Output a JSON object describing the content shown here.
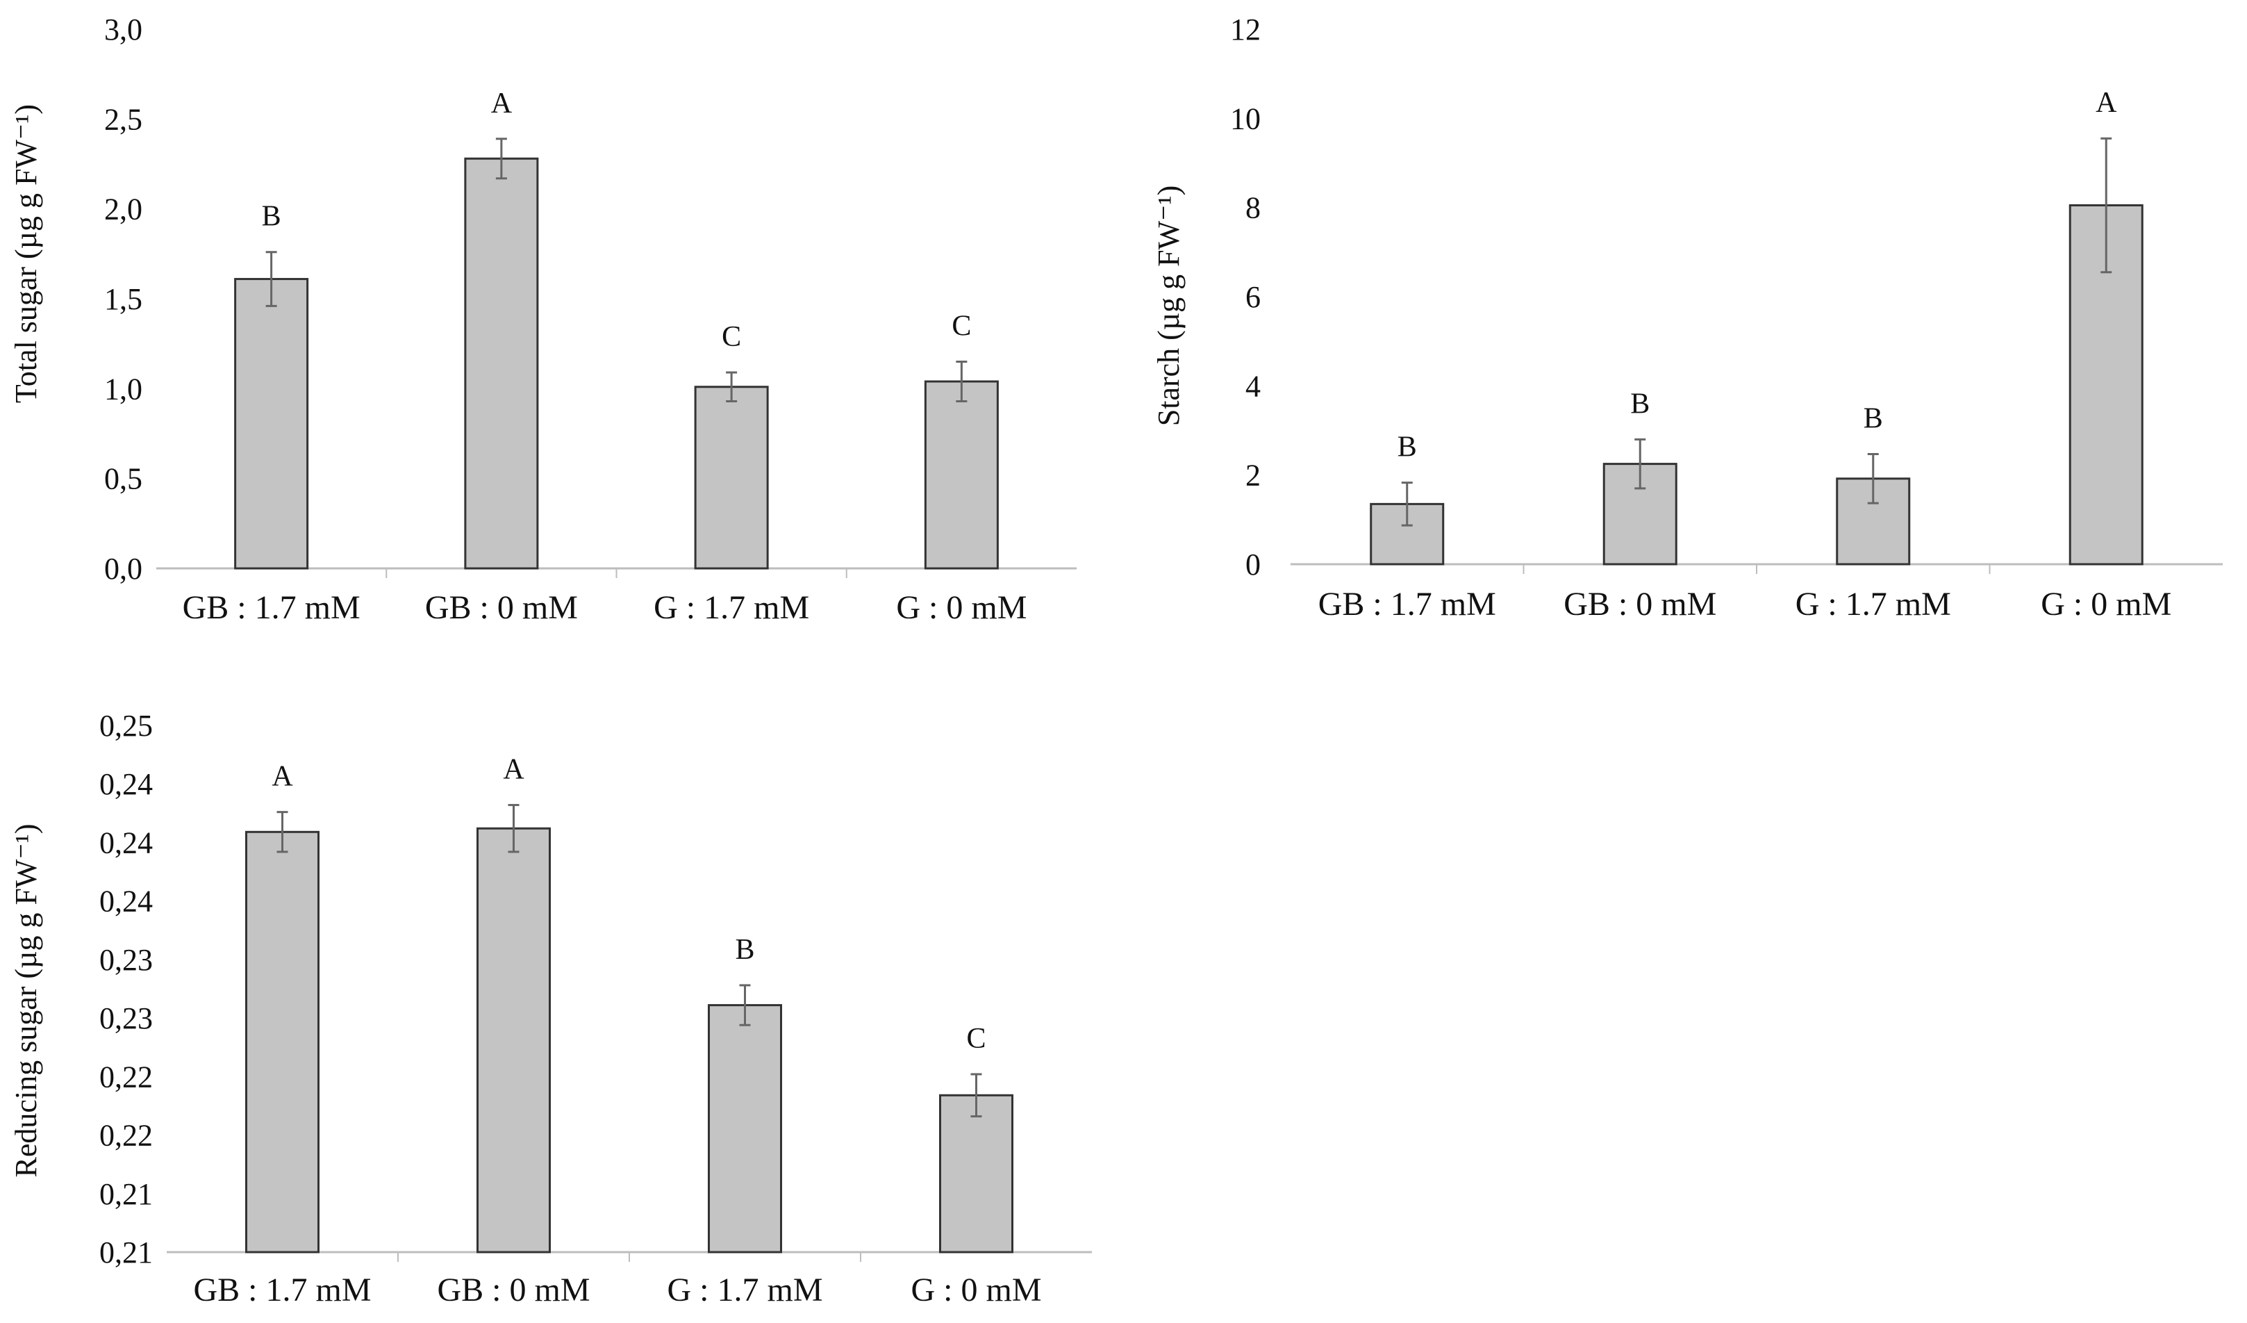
{
  "chart_data": [
    {
      "type": "bar",
      "id": "total",
      "ylabel": "Total sugar (µg g FW⁻¹)",
      "categories": [
        "GB : 1.7 mM",
        "GB : 0 mM",
        "G : 1.7 mM",
        "G : 0 mM"
      ],
      "values": [
        1.61,
        2.28,
        1.01,
        1.04
      ],
      "errors": [
        0.15,
        0.11,
        0.08,
        0.11
      ],
      "letters": [
        "B",
        "A",
        "C",
        "C"
      ],
      "ylim": [
        0,
        3.0
      ],
      "yticks": [
        0,
        0.5,
        1.0,
        1.5,
        2.0,
        2.5,
        3.0
      ],
      "ytick_labels": [
        "0,0",
        "0,5",
        "1,0",
        "1,5",
        "2,0",
        "2,5",
        "3,0"
      ],
      "grid": false
    },
    {
      "type": "bar",
      "id": "starch",
      "ylabel": "Starch (µg g FW⁻¹)",
      "categories": [
        "GB : 1.7 mM",
        "GB : 0 mM",
        "G : 1.7 mM",
        "G : 0 mM"
      ],
      "values": [
        1.35,
        2.25,
        1.92,
        8.05
      ],
      "errors": [
        0.48,
        0.55,
        0.55,
        1.5
      ],
      "letters": [
        "B",
        "B",
        "B",
        "A"
      ],
      "ylim": [
        0,
        12
      ],
      "yticks": [
        0,
        2,
        4,
        6,
        8,
        10,
        12
      ],
      "ytick_labels": [
        "0",
        "2",
        "4",
        "6",
        "8",
        "10",
        "12"
      ],
      "grid": false
    },
    {
      "type": "bar",
      "id": "reducing",
      "ylabel": "Reducing sugar (µg g FW⁻¹)",
      "categories": [
        "GB : 1.7 mM",
        "GB : 0 mM",
        "G : 1.7 mM",
        "G : 0 mM"
      ],
      "values": [
        0.2434,
        0.2437,
        0.2286,
        0.2209
      ],
      "errors": [
        0.0017,
        0.002,
        0.0017,
        0.0018
      ],
      "letters": [
        "A",
        "A",
        "B",
        "C"
      ],
      "ylim": [
        0.2075,
        0.2525
      ],
      "yticks": [
        0.2075,
        0.2125,
        0.2175,
        0.2225,
        0.2275,
        0.2325,
        0.2375,
        0.2425,
        0.2475,
        0.2525
      ],
      "ytick_labels": [
        "0,21",
        "0,21",
        "0,22",
        "0,22",
        "0,23",
        "0,23",
        "0,24",
        "0,24",
        "0,24",
        "0,25"
      ],
      "grid": false
    }
  ]
}
